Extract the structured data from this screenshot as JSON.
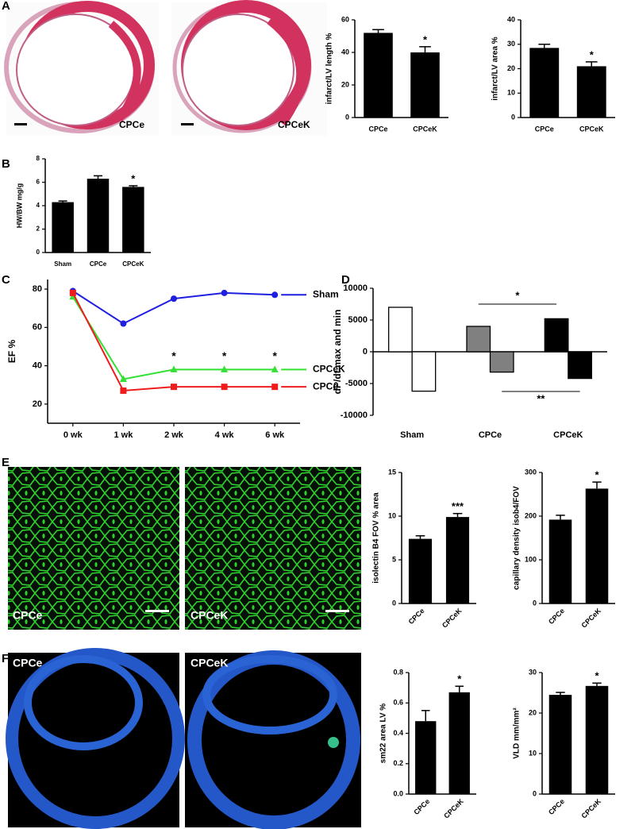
{
  "panel_labels": [
    "A",
    "B",
    "C",
    "D",
    "E",
    "F"
  ],
  "image_labels": {
    "a_left": "CPCe",
    "a_right": "CPCeK",
    "e_left": "CPCe",
    "e_right": "CPCeK",
    "f_left": "CPCe",
    "f_right": "CPCeK"
  },
  "chart_data": [
    {
      "type": "bar",
      "ylabel": "infarct/LV length %",
      "categories": [
        "CPCe",
        "CPCeK"
      ],
      "values": [
        52,
        40
      ],
      "errors": [
        2,
        3.5
      ],
      "color": "#000000",
      "ylim": [
        0,
        60
      ],
      "yticks": [
        0,
        20,
        40,
        60
      ],
      "annotations": [
        {
          "text": "*",
          "x": "CPCeK"
        }
      ]
    },
    {
      "type": "bar",
      "ylabel": "infarct/LV area %",
      "categories": [
        "CPCe",
        "CPCeK"
      ],
      "values": [
        28.5,
        21
      ],
      "errors": [
        1.5,
        1.8
      ],
      "color": "#000000",
      "ylim": [
        0,
        40
      ],
      "yticks": [
        0,
        10,
        20,
        30,
        40
      ],
      "annotations": [
        {
          "text": "*",
          "x": "CPCeK"
        }
      ]
    },
    {
      "type": "bar",
      "ylabel": "HW/BW mg/g",
      "categories": [
        "Sham",
        "CPCe",
        "CPCeK"
      ],
      "values": [
        4.3,
        6.3,
        5.6
      ],
      "errors": [
        0.1,
        0.25,
        0.1
      ],
      "color": "#000000",
      "ylim": [
        0,
        8
      ],
      "yticks": [
        0,
        2,
        4,
        6,
        8
      ],
      "annotations": [
        {
          "text": "*",
          "x": "CPCeK"
        }
      ]
    },
    {
      "type": "line",
      "ylabel": "EF %",
      "x": [
        "0 wk",
        "1 wk",
        "2 wk",
        "4 wk",
        "6 wk"
      ],
      "ylim": [
        10,
        85
      ],
      "yticks": [
        20,
        40,
        60,
        80
      ],
      "series": [
        {
          "name": "Sham",
          "color": "#1f1fe0",
          "marker": "circle",
          "values": [
            79,
            62,
            75,
            78,
            77
          ]
        },
        {
          "name": "CPCeK",
          "color": "#33e033",
          "marker": "triangle",
          "values": [
            76,
            33,
            38,
            38,
            38
          ]
        },
        {
          "name": "CPCe",
          "color": "#ee1c1c",
          "marker": "square",
          "values": [
            78,
            27,
            29,
            29,
            29
          ]
        }
      ],
      "annotations": [
        {
          "text": "*",
          "x": "2 wk"
        },
        {
          "text": "*",
          "x": "4 wk"
        },
        {
          "text": "*",
          "x": "6 wk"
        }
      ]
    },
    {
      "type": "bar",
      "ylabel": "dP/dt max and min",
      "categories": [
        "Sham",
        "CPCe",
        "CPCeK"
      ],
      "colors": [
        "#ffffff",
        "#808080",
        "#000000"
      ],
      "series": [
        {
          "values": [
            7000,
            4000,
            5200
          ]
        },
        {
          "values": [
            -6200,
            -3200,
            -4200
          ]
        }
      ],
      "ylim": [
        -10000,
        10000
      ],
      "yticks": [
        -10000,
        -5000,
        0,
        5000,
        10000
      ],
      "annotations": [
        {
          "text": "*"
        },
        {
          "text": "**"
        }
      ]
    },
    {
      "type": "bar",
      "ylabel": "isolectin B4 FOV % area",
      "categories": [
        "CPCe",
        "CPCeK"
      ],
      "values": [
        7.4,
        9.9
      ],
      "errors": [
        0.35,
        0.4
      ],
      "color": "#000000",
      "ylim": [
        0,
        15
      ],
      "yticks": [
        0,
        5,
        10,
        15
      ],
      "annotations": [
        {
          "text": "***",
          "x": "CPCeK"
        }
      ]
    },
    {
      "type": "bar",
      "ylabel": "capillary density isob4/FOV",
      "categories": [
        "CPCe",
        "CPCeK"
      ],
      "values": [
        192,
        263
      ],
      "errors": [
        10,
        15
      ],
      "color": "#000000",
      "ylim": [
        0,
        300
      ],
      "yticks": [
        0,
        100,
        200,
        300
      ],
      "annotations": [
        {
          "text": "*",
          "x": "CPCeK"
        }
      ]
    },
    {
      "type": "bar",
      "ylabel": "sm22 area LV %",
      "categories": [
        "CPCe",
        "CPCeK"
      ],
      "values": [
        0.48,
        0.67
      ],
      "errors": [
        0.07,
        0.04
      ],
      "color": "#000000",
      "ylim": [
        0,
        0.8
      ],
      "yticks": [
        {
          "value": 0,
          "label": "0.0"
        },
        0.2,
        0.4,
        0.6,
        0.8
      ],
      "annotations": [
        {
          "text": "*",
          "x": "CPCeK"
        }
      ]
    },
    {
      "type": "bar",
      "ylabel": "VLD mm/mm²",
      "categories": [
        "CPCe",
        "CPCeK"
      ],
      "values": [
        24.5,
        26.7
      ],
      "errors": [
        0.6,
        0.7
      ],
      "color": "#000000",
      "ylim": [
        0,
        30
      ],
      "yticks": [
        0,
        10,
        20,
        30
      ],
      "annotations": [
        {
          "text": "*",
          "x": "CPCeK"
        }
      ]
    }
  ]
}
